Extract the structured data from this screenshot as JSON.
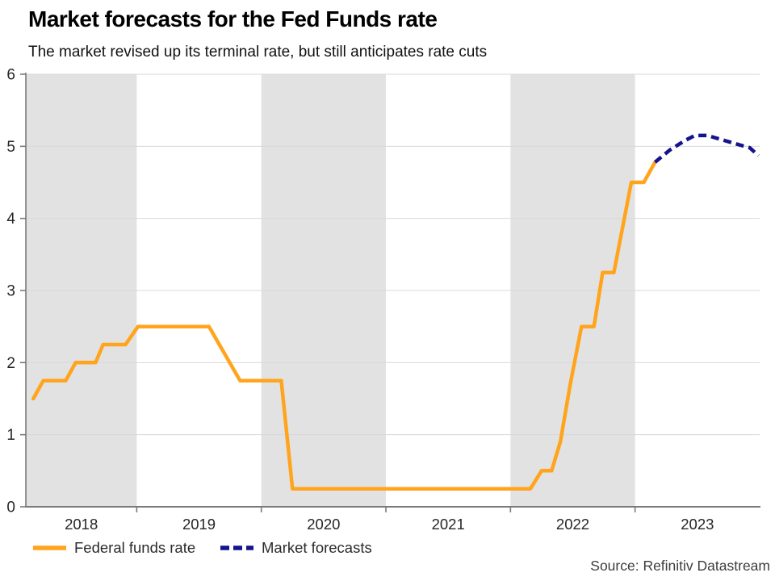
{
  "header": {
    "title": "Market forecasts for the Fed Funds rate",
    "subtitle": "The market revised up its terminal rate, but still anticipates rate cuts"
  },
  "source_text": "Source: Refinitiv Datastream",
  "legend": {
    "items": [
      {
        "label": "Federal funds rate",
        "color": "#FFA41C",
        "dashed": false
      },
      {
        "label": "Market forecasts",
        "color": "#14148C",
        "dashed": true
      }
    ]
  },
  "colors": {
    "band": "#E2E2E2",
    "grid": "#D8D8D8",
    "axis": "#7A7A7A",
    "tick_label": "#262626",
    "orange_line": "#FFA41C",
    "navy_line": "#14148C"
  },
  "chart_data": {
    "type": "line",
    "title": "Market forecasts for the Fed Funds rate",
    "subtitle": "The market revised up its terminal rate, but still anticipates rate cuts",
    "xlabel": "",
    "ylabel": "",
    "ylim": [
      0,
      6
    ],
    "y_ticks": [
      0,
      1,
      2,
      3,
      4,
      5,
      6
    ],
    "x_range": [
      2018.11,
      2024.0
    ],
    "x_tick_years": [
      2019,
      2020,
      2021,
      2022,
      2023
    ],
    "x_labels": [
      {
        "text": "2018",
        "center": 2018.555
      },
      {
        "text": "2019",
        "center": 2019.5
      },
      {
        "text": "2020",
        "center": 2020.5
      },
      {
        "text": "2021",
        "center": 2021.5
      },
      {
        "text": "2022",
        "center": 2022.5
      },
      {
        "text": "2023",
        "center": 2023.5
      }
    ],
    "shaded_year_bands": [
      [
        2018.11,
        2019
      ],
      [
        2020,
        2021
      ],
      [
        2022,
        2023
      ]
    ],
    "grid": true,
    "legend_position": "bottom",
    "series": [
      {
        "name": "Federal funds rate",
        "style": "solid",
        "color": "#FFA41C",
        "points": [
          [
            2018.17,
            1.5
          ],
          [
            2018.25,
            1.75
          ],
          [
            2018.43,
            1.75
          ],
          [
            2018.51,
            2.0
          ],
          [
            2018.67,
            2.0
          ],
          [
            2018.73,
            2.25
          ],
          [
            2018.91,
            2.25
          ],
          [
            2019.01,
            2.5
          ],
          [
            2019.58,
            2.5
          ],
          [
            2019.83,
            1.75
          ],
          [
            2020.16,
            1.75
          ],
          [
            2020.25,
            0.25
          ],
          [
            2022.16,
            0.25
          ],
          [
            2022.25,
            0.5
          ],
          [
            2022.33,
            0.5
          ],
          [
            2022.4,
            0.9
          ],
          [
            2022.48,
            1.7
          ],
          [
            2022.57,
            2.5
          ],
          [
            2022.67,
            2.5
          ],
          [
            2022.74,
            3.25
          ],
          [
            2022.83,
            3.25
          ],
          [
            2022.97,
            4.5
          ],
          [
            2023.07,
            4.5
          ],
          [
            2023.16,
            4.78
          ]
        ]
      },
      {
        "name": "Market forecasts",
        "style": "dashed",
        "color": "#14148C",
        "points": [
          [
            2023.16,
            4.78
          ],
          [
            2023.28,
            4.95
          ],
          [
            2023.4,
            5.08
          ],
          [
            2023.48,
            5.15
          ],
          [
            2023.58,
            5.15
          ],
          [
            2023.7,
            5.09
          ],
          [
            2023.82,
            5.03
          ],
          [
            2023.92,
            4.98
          ],
          [
            2023.99,
            4.87
          ]
        ]
      }
    ]
  }
}
